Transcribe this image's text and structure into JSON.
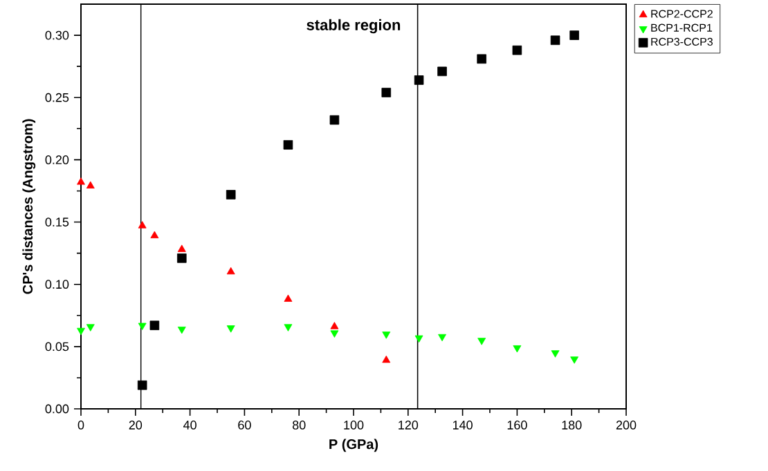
{
  "chart_data": {
    "type": "scatter",
    "xlabel": "P (GPa)",
    "ylabel": "CP's distances (Angstrom)",
    "xlim": [
      0,
      200
    ],
    "xticks": [
      0,
      20,
      40,
      60,
      80,
      100,
      120,
      140,
      160,
      180,
      200
    ],
    "ylim": [
      0,
      0.325
    ],
    "yticks": [
      {
        "value": 0,
        "label": "0.00"
      },
      {
        "value": 0.05,
        "label": "0.05"
      },
      {
        "value": 0.1,
        "label": "0.10"
      },
      {
        "value": 0.15,
        "label": "0.15"
      },
      {
        "value": 0.2,
        "label": "0.20"
      },
      {
        "value": 0.25,
        "label": "0.25"
      },
      {
        "value": 0.3,
        "label": "0.30"
      }
    ],
    "legend": "top right",
    "ref_lines": [
      {
        "axis": "x",
        "value": 22,
        "color": "#000000"
      },
      {
        "axis": "x",
        "value": 123.5,
        "color": "#000000"
      }
    ],
    "annotations": [
      "stable region"
    ],
    "series": [
      {
        "name": "RCP2-CCP2",
        "color": "#ff0000",
        "marker": "triangle",
        "x": [
          0,
          3.5,
          22.5,
          27,
          37,
          55,
          76,
          93,
          112
        ],
        "values": [
          0.182,
          0.179,
          0.147,
          0.139,
          0.128,
          0.11,
          0.088,
          0.066,
          0.039
        ]
      },
      {
        "name": "BCP1-RCP1",
        "color": "#00ff00",
        "marker": "triangle-down",
        "x": [
          0,
          3.5,
          22.5,
          27,
          37,
          55,
          76,
          93,
          112,
          124,
          132.5,
          147,
          160,
          174,
          181
        ],
        "values": [
          0.063,
          0.066,
          0.067,
          null,
          0.064,
          0.065,
          0.066,
          0.061,
          0.06,
          0.057,
          0.058,
          0.055,
          0.049,
          0.045,
          0.04
        ]
      },
      {
        "name": "RCP3-CCP3",
        "color": "#000000",
        "marker": "square",
        "x": [
          22.5,
          27,
          37,
          55,
          76,
          93,
          112,
          124,
          132.5,
          147,
          160,
          174,
          181
        ],
        "values": [
          0.019,
          0.067,
          0.121,
          0.172,
          0.212,
          0.232,
          0.254,
          0.264,
          0.271,
          0.281,
          0.288,
          0.296,
          0.3
        ]
      }
    ]
  }
}
